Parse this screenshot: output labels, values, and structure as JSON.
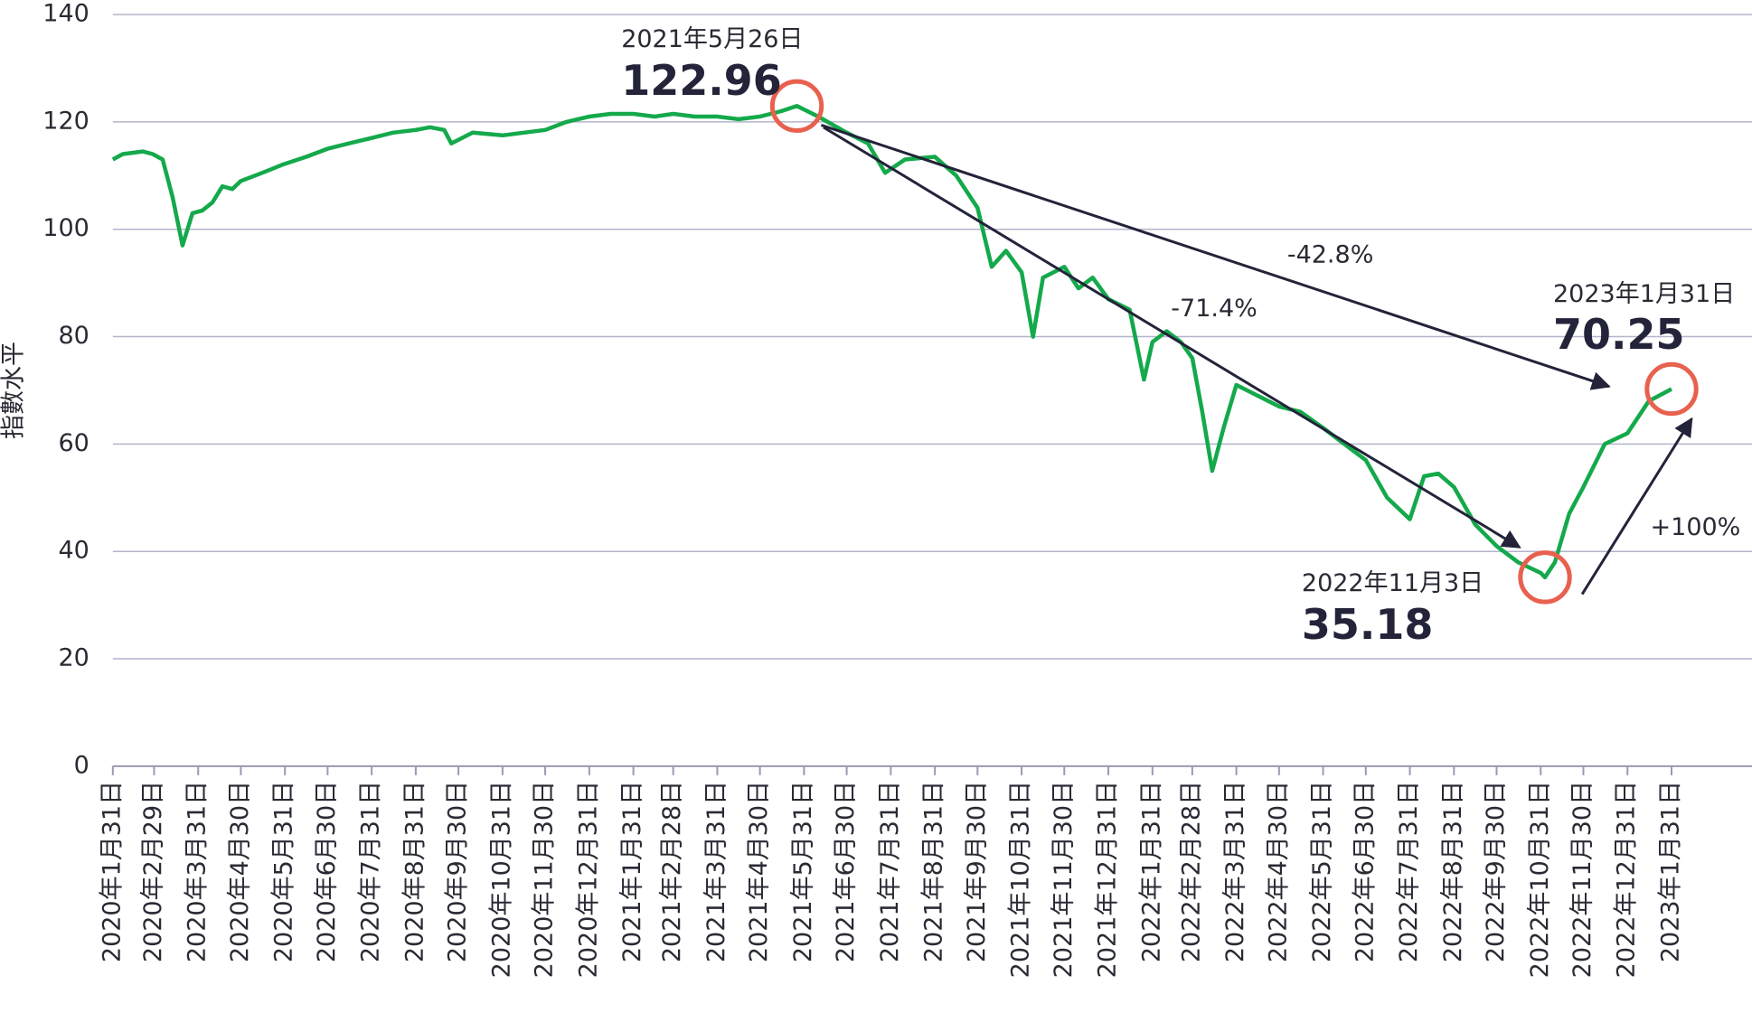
{
  "chart_data": {
    "type": "line",
    "y_label": "指數水平",
    "color": "#14a94b",
    "ylim": [
      0,
      140
    ],
    "yticks": [
      0,
      20,
      40,
      60,
      80,
      100,
      120,
      140
    ],
    "grid": true,
    "xlim": [
      "2020年1月31日",
      "2023年1月31日"
    ],
    "xticks": [
      "2020年1月31日",
      "2020年2月29日",
      "2020年3月31日",
      "2020年4月30日",
      "2020年5月31日",
      "2020年6月30日",
      "2020年7月31日",
      "2020年8月31日",
      "2020年9月30日",
      "2020年10月31日",
      "2020年11月30日",
      "2020年12月31日",
      "2021年1月31日",
      "2021年2月28日",
      "2021年3月31日",
      "2021年4月30日",
      "2021年5月31日",
      "2021年6月30日",
      "2021年7月31日",
      "2021年8月31日",
      "2021年9月30日",
      "2021年10月31日",
      "2021年11月30日",
      "2021年12月31日",
      "2022年1月31日",
      "2022年2月28日",
      "2022年3月31日",
      "2022年4月30日",
      "2022年5月31日",
      "2022年6月30日",
      "2022年7月31日",
      "2022年8月31日",
      "2022年9月30日",
      "2022年10月31日",
      "2022年11月30日",
      "2022年12月31日",
      "2023年1月31日"
    ],
    "x": [
      "2020年1月31日",
      "2020年2月7日",
      "2020年2月21日",
      "2020年2月28日",
      "2020年3月6日",
      "2020年3月13日",
      "2020年3月20日",
      "2020年3月27日",
      "2020年4月3日",
      "2020年4月10日",
      "2020年4月17日",
      "2020年4月24日",
      "2020年4月30日",
      "2020年5月15日",
      "2020年5月29日",
      "2020年6月15日",
      "2020年6月30日",
      "2020年7月15日",
      "2020年7月31日",
      "2020年8月15日",
      "2020年8月31日",
      "2020年9月10日",
      "2020年9月20日",
      "2020年9月25日",
      "2020年10月10日",
      "2020年10月31日",
      "2020年11月15日",
      "2020年11月30日",
      "2020年12月15日",
      "2020年12月31日",
      "2021年1月15日",
      "2021年1月31日",
      "2021年2月15日",
      "2021年2月28日",
      "2021年3月15日",
      "2021年3月31日",
      "2021年4月15日",
      "2021年4月30日",
      "2021年5月15日",
      "2021年5月26日",
      "2021年6月10日",
      "2021年6月30日",
      "2021年7月15日",
      "2021年7月27日",
      "2021年8月10日",
      "2021年8月31日",
      "2021年9月15日",
      "2021年9月30日",
      "2021年10月10日",
      "2021年10月20日",
      "2021年10月31日",
      "2021年11月8日",
      "2021年11月15日",
      "2021年11月30日",
      "2021年12月10日",
      "2021年12月20日",
      "2021年12月31日",
      "2022年1月15日",
      "2022年1月25日",
      "2022年1月31日",
      "2022年2月10日",
      "2022年2月20日",
      "2022年2月28日",
      "2022年3月7日",
      "2022年3月14日",
      "2022年3月22日",
      "2022年3月31日",
      "2022年4月15日",
      "2022年4月30日",
      "2022年5月15日",
      "2022年5月31日",
      "2022年6月15日",
      "2022年6月30日",
      "2022年7月15日",
      "2022年7月31日",
      "2022年8月10日",
      "2022年8月20日",
      "2022年8月31日",
      "2022年9月15日",
      "2022年9月30日",
      "2022年10月15日",
      "2022年10月31日",
      "2022年11月3日",
      "2022年11月10日",
      "2022年11月20日",
      "2022年11月30日",
      "2022年12月15日",
      "2022年12月31日",
      "2023年1月15日",
      "2023年1月31日"
    ],
    "values": [
      113,
      114,
      114.5,
      114,
      113,
      106,
      97,
      103,
      103.5,
      105,
      108,
      107.5,
      109,
      110.5,
      112,
      113.5,
      115,
      116,
      117,
      118,
      118.5,
      119,
      118.5,
      116,
      118,
      117.5,
      118,
      118.5,
      120,
      121,
      121.5,
      121.5,
      121,
      121.5,
      121,
      121,
      120.5,
      121,
      122,
      122.96,
      121,
      118,
      116,
      110.5,
      113,
      113.5,
      110,
      104,
      93,
      96,
      92,
      80,
      91,
      93,
      89,
      91,
      87,
      85,
      72,
      79,
      81,
      79,
      76,
      66,
      55,
      63,
      71,
      69,
      67,
      66,
      63,
      60,
      57,
      50,
      46,
      54,
      54.5,
      52,
      45,
      41,
      38,
      36,
      35.18,
      38,
      47,
      52,
      60,
      62,
      68,
      70.25
    ],
    "annotations": [
      {
        "date": "2021年5月26日",
        "value": 122.96
      },
      {
        "date": "2022年11月3日",
        "value": 35.18
      },
      {
        "date": "2023年1月31日",
        "value": 70.25
      }
    ],
    "change_labels": [
      "-42.8%",
      "-71.4%",
      "+100%"
    ]
  }
}
